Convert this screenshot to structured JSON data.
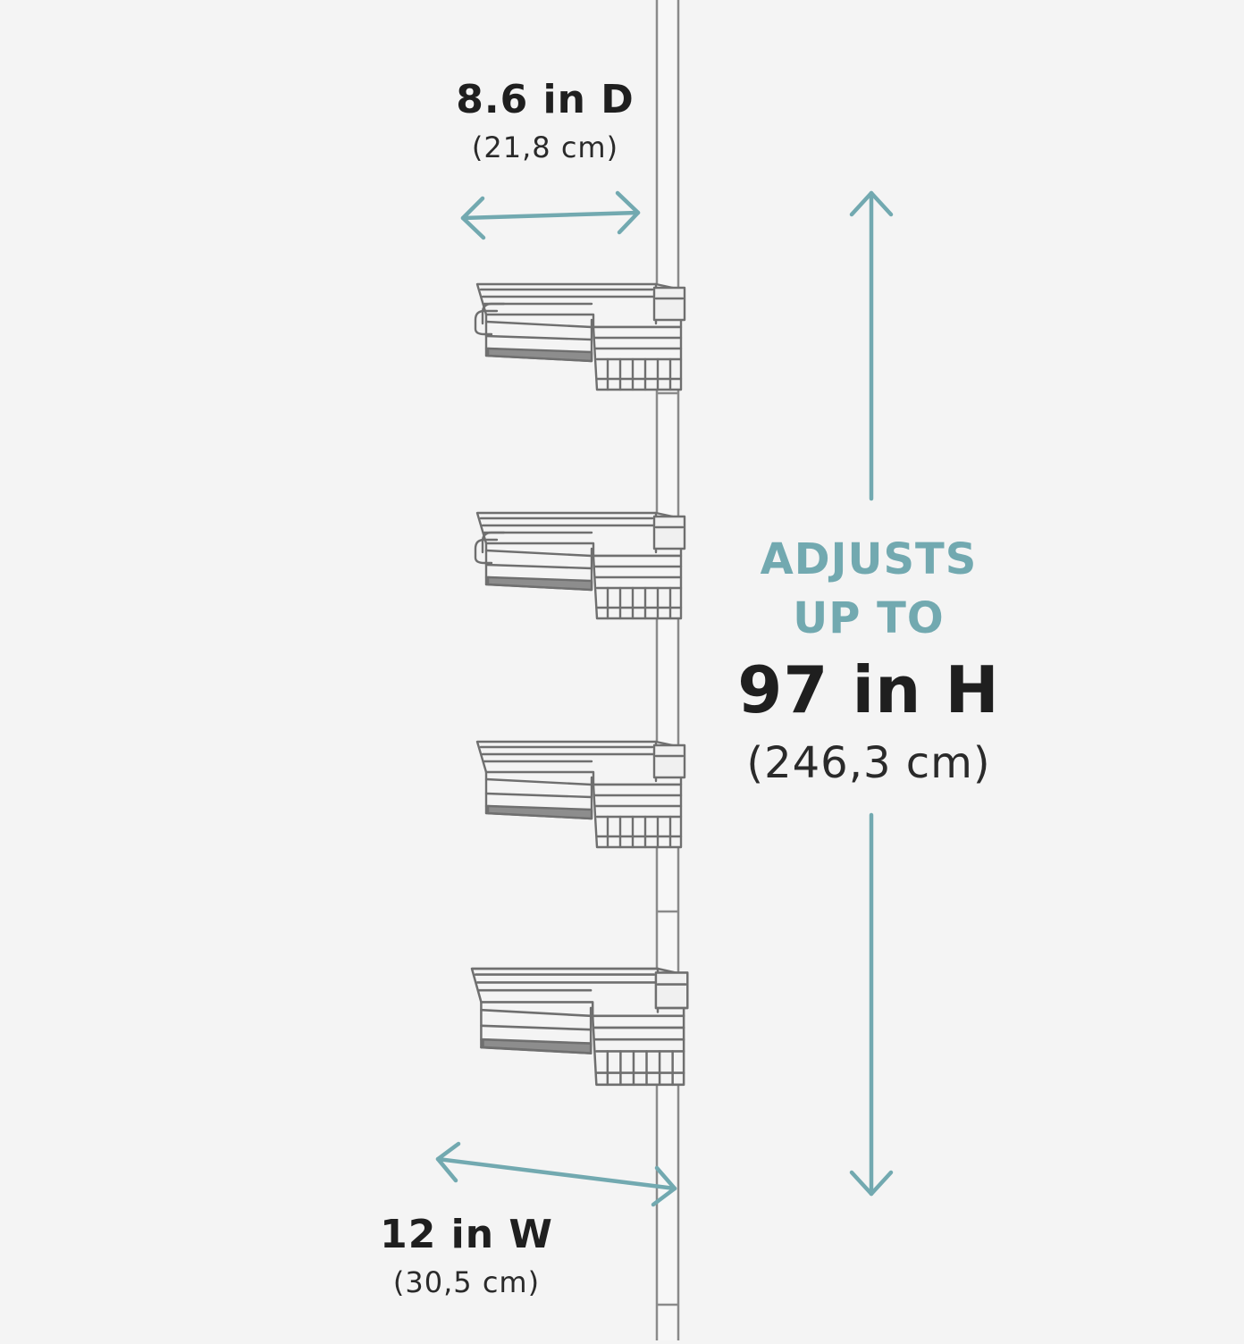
{
  "depth": {
    "imperial": "8.6 in D",
    "metric": "(21,8 cm)"
  },
  "height": {
    "line1": "ADJUSTS",
    "line2": "UP TO",
    "imperial": "97 in H",
    "metric": "(246,3 cm)"
  },
  "width": {
    "imperial": "12 in W",
    "metric": "(30,5 cm)"
  },
  "colors": {
    "background": "#f4f4f4",
    "accent": "#72a9b0",
    "text": "#1f1f1f",
    "wire": "#6f6f6f"
  },
  "product": {
    "shelf_count": 4
  }
}
